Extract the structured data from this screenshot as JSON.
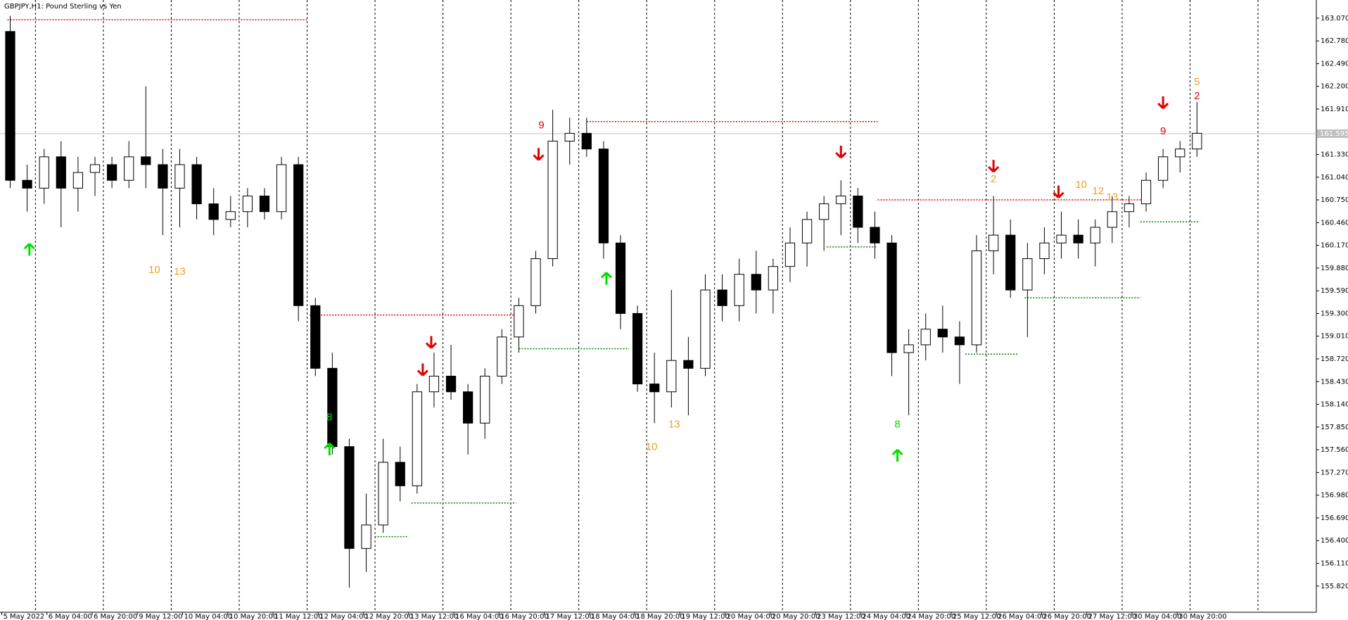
{
  "chart_data": {
    "type": "candlestick",
    "title": "GBPJPY,H1:  Pound Sterling vs Yen",
    "ylim": [
      155.489,
      163.302
    ],
    "yticks": [
      {
        "value": 163.07,
        "label": "163.070"
      },
      {
        "value": 162.78,
        "label": "162.780"
      },
      {
        "value": 162.49,
        "label": "162.490"
      },
      {
        "value": 162.2,
        "label": "162.200"
      },
      {
        "value": 161.91,
        "label": "161.910"
      },
      {
        "value": 161.33,
        "label": "161.330"
      },
      {
        "value": 161.04,
        "label": "161.040"
      },
      {
        "value": 160.75,
        "label": "160.750"
      },
      {
        "value": 160.46,
        "label": "160.460"
      },
      {
        "value": 160.17,
        "label": "160.170"
      },
      {
        "value": 159.88,
        "label": "159.880"
      },
      {
        "value": 159.59,
        "label": "159.590"
      },
      {
        "value": 159.3,
        "label": "159.300"
      },
      {
        "value": 159.01,
        "label": "159.010"
      },
      {
        "value": 158.72,
        "label": "158.720"
      },
      {
        "value": 158.43,
        "label": "158.430"
      },
      {
        "value": 158.14,
        "label": "158.140"
      },
      {
        "value": 157.85,
        "label": "157.850"
      },
      {
        "value": 157.56,
        "label": "157.560"
      },
      {
        "value": 157.27,
        "label": "157.270"
      },
      {
        "value": 156.98,
        "label": "156.980"
      },
      {
        "value": 156.69,
        "label": "156.690"
      },
      {
        "value": 156.4,
        "label": "156.400"
      },
      {
        "value": 156.11,
        "label": "156.110"
      },
      {
        "value": 155.82,
        "label": "155.820"
      }
    ],
    "current_price": {
      "value": 161.595,
      "label": "161.595"
    },
    "x_labels": [
      "5 May 2022",
      "6 May 04:00",
      "6 May 20:00",
      "9 May 12:00",
      "10 May 04:00",
      "10 May 20:00",
      "11 May 12:00",
      "12 May 04:00",
      "12 May 20:00",
      "13 May 12:00",
      "16 May 04:00",
      "16 May 20:00",
      "17 May 12:00",
      "18 May 04:00",
      "18 May 20:00",
      "19 May 12:00",
      "20 May 04:00",
      "20 May 20:00",
      "23 May 12:00",
      "24 May 04:00",
      "24 May 20:00",
      "25 May 12:00",
      "26 May 04:00",
      "26 May 20:00",
      "27 May 12:00",
      "30 May 04:00",
      "30 May 20:00"
    ],
    "open": [
      162.9,
      161.0,
      160.9,
      161.3,
      160.9,
      161.1,
      161.2,
      161.0,
      161.3,
      161.2,
      160.9,
      161.2,
      160.7,
      160.5,
      160.6,
      160.8,
      160.6,
      161.2,
      159.4,
      158.6,
      157.6,
      156.3,
      156.6,
      157.4,
      157.1,
      158.3,
      158.5,
      158.3,
      157.9,
      158.5,
      159.0,
      159.4,
      160.0,
      161.5,
      161.6,
      161.4,
      160.2,
      159.3,
      158.4,
      158.3,
      158.7,
      158.6,
      159.6,
      159.4,
      159.8,
      159.6,
      159.9,
      160.2,
      160.5,
      160.7,
      160.8,
      160.4,
      160.2,
      158.8,
      158.9,
      159.1,
      159.0,
      158.9,
      160.1,
      160.3,
      159.6,
      160.0,
      160.2,
      160.3,
      160.2,
      160.4,
      160.6,
      160.7,
      161.0,
      161.3,
      161.4
    ],
    "high": [
      163.1,
      161.2,
      161.4,
      161.5,
      161.3,
      161.3,
      161.3,
      161.5,
      162.2,
      161.4,
      161.4,
      161.3,
      160.9,
      160.8,
      160.9,
      160.9,
      161.3,
      161.3,
      159.5,
      158.8,
      157.7,
      157.0,
      157.7,
      157.6,
      158.4,
      158.8,
      158.9,
      158.4,
      158.6,
      159.1,
      159.5,
      160.1,
      161.9,
      161.8,
      161.8,
      161.5,
      160.3,
      159.4,
      158.8,
      159.6,
      159.0,
      159.8,
      159.8,
      160.0,
      160.1,
      160.0,
      160.4,
      160.6,
      160.8,
      161.0,
      160.9,
      160.6,
      160.3,
      159.1,
      159.3,
      159.4,
      159.2,
      160.3,
      160.8,
      160.5,
      160.2,
      160.4,
      160.6,
      160.5,
      160.5,
      160.8,
      160.8,
      161.1,
      161.4,
      161.5,
      162.0
    ],
    "low": [
      160.9,
      160.6,
      160.7,
      160.4,
      160.6,
      160.8,
      160.9,
      160.9,
      160.9,
      160.3,
      160.4,
      160.5,
      160.3,
      160.4,
      160.4,
      160.5,
      160.5,
      159.2,
      158.5,
      157.5,
      155.8,
      156.0,
      156.5,
      156.9,
      157.0,
      158.1,
      158.2,
      157.5,
      157.7,
      158.4,
      158.8,
      159.3,
      159.9,
      161.2,
      161.3,
      160.0,
      159.1,
      158.3,
      157.9,
      158.1,
      158.0,
      158.5,
      159.2,
      159.2,
      159.3,
      159.3,
      159.7,
      159.9,
      160.1,
      160.3,
      160.2,
      160.0,
      158.5,
      158.0,
      158.7,
      158.8,
      158.4,
      158.8,
      159.8,
      159.5,
      159.0,
      159.8,
      160.0,
      160.0,
      159.9,
      160.2,
      160.4,
      160.6,
      160.9,
      161.1,
      161.3
    ],
    "close": [
      161.0,
      160.9,
      161.3,
      160.9,
      161.1,
      161.2,
      161.0,
      161.3,
      161.2,
      160.9,
      161.2,
      160.7,
      160.5,
      160.6,
      160.8,
      160.6,
      161.2,
      159.4,
      158.6,
      157.6,
      156.3,
      156.6,
      157.4,
      157.1,
      158.3,
      158.5,
      158.3,
      157.9,
      158.5,
      159.0,
      159.4,
      160.0,
      161.5,
      161.6,
      161.4,
      160.2,
      159.3,
      158.4,
      158.3,
      158.7,
      158.6,
      159.6,
      159.4,
      159.8,
      159.6,
      159.9,
      160.2,
      160.5,
      160.7,
      160.8,
      160.4,
      160.2,
      158.8,
      158.9,
      159.1,
      159.0,
      158.9,
      160.1,
      160.3,
      159.6,
      160.0,
      160.2,
      160.3,
      160.2,
      160.4,
      160.6,
      160.7,
      161.0,
      161.3,
      161.4,
      161.6
    ],
    "levels": [
      {
        "value": 163.05,
        "color": "#e00000",
        "from": 2,
        "to": 108
      },
      {
        "value": 159.28,
        "color": "#e00000",
        "from": 109,
        "to": 183
      },
      {
        "value": 161.75,
        "color": "#e00000",
        "from": 207,
        "to": 310
      },
      {
        "value": 160.75,
        "color": "#e00000",
        "from": 310,
        "to": 406
      },
      {
        "value": 156.45,
        "color": "#008000",
        "from": 132,
        "to": 144
      },
      {
        "value": 156.88,
        "color": "#008000",
        "from": 145,
        "to": 182
      },
      {
        "value": 158.85,
        "color": "#008000",
        "from": 183,
        "to": 222
      },
      {
        "value": 160.15,
        "color": "#008000",
        "from": 292,
        "to": 310
      },
      {
        "value": 158.78,
        "color": "#008000",
        "from": 341,
        "to": 360
      },
      {
        "value": 159.5,
        "color": "#008000",
        "from": 362,
        "to": 403
      },
      {
        "value": 160.47,
        "color": "#008000",
        "from": 403,
        "to": 424
      }
    ],
    "arrows": [
      {
        "x": 9.8,
        "y": 160.11,
        "dir": "up",
        "color": "#00e000"
      },
      {
        "x": 116,
        "y": 157.56,
        "dir": "up",
        "color": "#00e000"
      },
      {
        "x": 214,
        "y": 159.74,
        "dir": "up",
        "color": "#00e000"
      },
      {
        "x": 317,
        "y": 157.48,
        "dir": "up",
        "color": "#00e000"
      },
      {
        "x": 149,
        "y": 158.59,
        "dir": "down",
        "color": "#e00000"
      },
      {
        "x": 152,
        "y": 158.94,
        "dir": "down",
        "color": "#e00000"
      },
      {
        "x": 190,
        "y": 161.34,
        "dir": "down",
        "color": "#e00000"
      },
      {
        "x": 297,
        "y": 161.37,
        "dir": "down",
        "color": "#e00000"
      },
      {
        "x": 351,
        "y": 161.19,
        "dir": "down",
        "color": "#e00000"
      },
      {
        "x": 374,
        "y": 160.86,
        "dir": "down",
        "color": "#e00000"
      },
      {
        "x": 411,
        "y": 162.0,
        "dir": "down",
        "color": "#e00000"
      }
    ],
    "annotations": [
      {
        "text": "9",
        "x": 191,
        "y": 161.7,
        "color": "#e00000"
      },
      {
        "text": "10",
        "x": 230,
        "y": 157.59,
        "color": "#f0a020"
      },
      {
        "text": "13",
        "x": 238,
        "y": 157.88,
        "color": "#f0a020"
      },
      {
        "text": "8",
        "x": 317,
        "y": 157.88,
        "color": "#00e000"
      },
      {
        "text": "10",
        "x": 54,
        "y": 159.85,
        "color": "#f0a020"
      },
      {
        "text": "13",
        "x": 63,
        "y": 159.83,
        "color": "#f0a020"
      },
      {
        "text": "5",
        "x": 423,
        "y": 162.25,
        "color": "#f0a020"
      },
      {
        "text": "2",
        "x": 423,
        "y": 162.07,
        "color": "#e00000"
      },
      {
        "text": "2",
        "x": 351,
        "y": 161.01,
        "color": "#f0a020"
      },
      {
        "text": "10",
        "x": 382,
        "y": 160.94,
        "color": "#f0a020"
      },
      {
        "text": "12",
        "x": 388,
        "y": 160.86,
        "color": "#f0a020"
      },
      {
        "text": "13",
        "x": 393,
        "y": 160.78,
        "color": "#f0a020"
      },
      {
        "text": "9",
        "x": 411,
        "y": 161.62,
        "color": "#e00000"
      },
      {
        "text": "8",
        "x": 116,
        "y": 157.97,
        "color": "#00e000"
      }
    ]
  }
}
